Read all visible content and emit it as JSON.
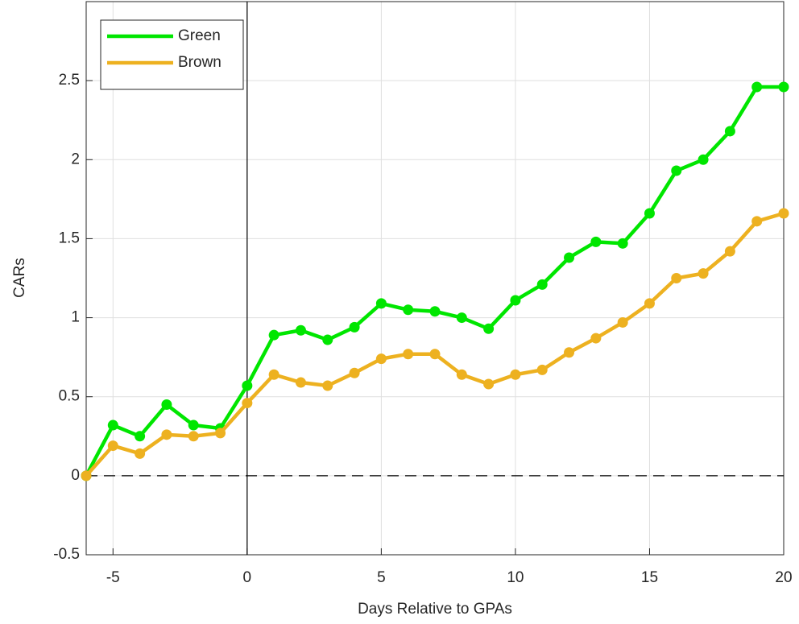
{
  "chart_data": {
    "type": "line",
    "x_label": "Days Relative to GPAs",
    "y_label": "CARs",
    "x": [
      -6,
      -5,
      -4,
      -3,
      -2,
      -1,
      0,
      1,
      2,
      3,
      4,
      5,
      6,
      7,
      8,
      9,
      10,
      11,
      12,
      13,
      14,
      15,
      16,
      17,
      18,
      19,
      20
    ],
    "series": [
      {
        "name": "Green",
        "color": "#00e600",
        "values": [
          0,
          0.32,
          0.25,
          0.45,
          0.32,
          0.3,
          0.57,
          0.89,
          0.92,
          0.86,
          0.94,
          1.09,
          1.05,
          1.04,
          1.0,
          0.93,
          1.11,
          1.21,
          1.38,
          1.48,
          1.47,
          1.66,
          1.93,
          2.0,
          2.18,
          2.46,
          2.46
        ]
      },
      {
        "name": "Brown",
        "color": "#edb120",
        "values": [
          0,
          0.19,
          0.14,
          0.26,
          0.25,
          0.27,
          0.46,
          0.64,
          0.59,
          0.57,
          0.65,
          0.74,
          0.77,
          0.77,
          0.64,
          0.58,
          0.64,
          0.67,
          0.78,
          0.87,
          0.97,
          1.09,
          1.25,
          1.28,
          1.42,
          1.61,
          1.66
        ]
      }
    ],
    "xlim": [
      -6,
      20
    ],
    "ylim": [
      -0.5,
      3
    ],
    "xticks": [
      -5,
      0,
      5,
      10,
      15,
      20
    ],
    "yticks": [
      -0.5,
      0,
      0.5,
      1,
      1.5,
      2,
      2.5
    ],
    "grid": true,
    "legend": "upper left",
    "reference_lines": {
      "x": 0,
      "y": 0
    }
  }
}
